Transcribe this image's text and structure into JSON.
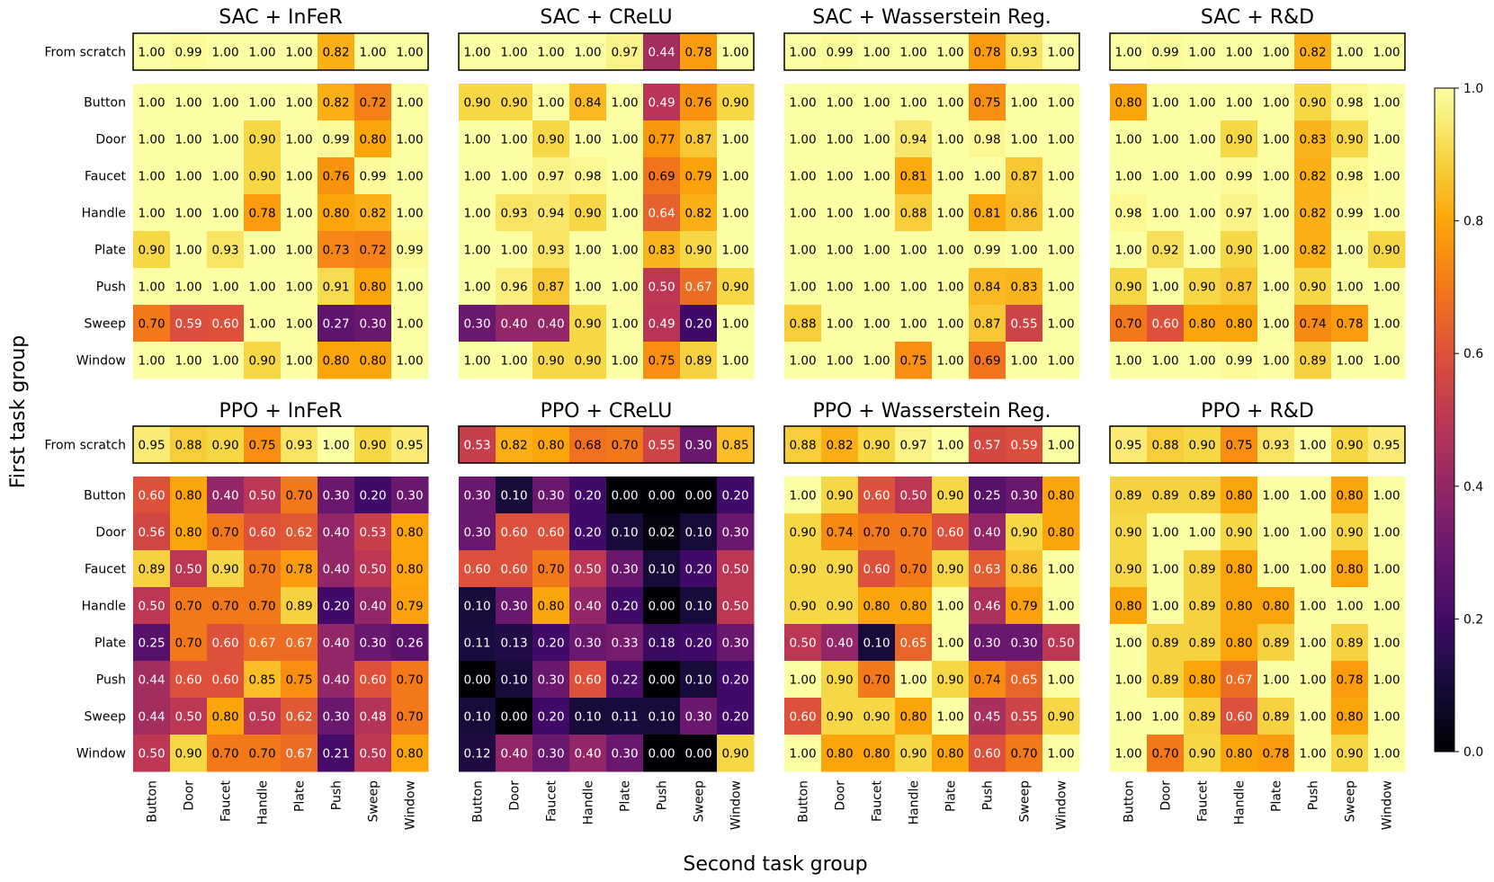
{
  "chart_data": {
    "type": "heatmap",
    "rows": [
      "Button",
      "Door",
      "Faucet",
      "Handle",
      "Plate",
      "Push",
      "Sweep",
      "Window"
    ],
    "columns": [
      "Button",
      "Door",
      "Faucet",
      "Handle",
      "Plate",
      "Push",
      "Sweep",
      "Window"
    ],
    "scratch_label": "From scratch",
    "ylabel": "First task group",
    "xlabel": "Second task group",
    "colorbar": {
      "min": 0.0,
      "max": 1.0,
      "ticks": [
        "0.0",
        "0.2",
        "0.4",
        "0.6",
        "0.8",
        "1.0"
      ]
    },
    "panels": [
      {
        "title": "SAC + InFeR",
        "scratch": [
          1.0,
          0.99,
          1.0,
          1.0,
          1.0,
          0.82,
          1.0,
          1.0
        ],
        "values": [
          [
            1.0,
            1.0,
            1.0,
            1.0,
            1.0,
            0.82,
            0.72,
            1.0
          ],
          [
            1.0,
            1.0,
            1.0,
            0.9,
            1.0,
            0.99,
            0.8,
            1.0
          ],
          [
            1.0,
            1.0,
            1.0,
            0.9,
            1.0,
            0.76,
            0.99,
            1.0
          ],
          [
            1.0,
            1.0,
            1.0,
            0.78,
            1.0,
            0.8,
            0.82,
            1.0
          ],
          [
            0.9,
            1.0,
            0.93,
            1.0,
            1.0,
            0.73,
            0.72,
            0.99
          ],
          [
            1.0,
            1.0,
            1.0,
            1.0,
            1.0,
            0.91,
            0.8,
            1.0
          ],
          [
            0.7,
            0.59,
            0.6,
            1.0,
            1.0,
            0.27,
            0.3,
            1.0
          ],
          [
            1.0,
            1.0,
            1.0,
            0.9,
            1.0,
            0.8,
            0.8,
            1.0
          ]
        ]
      },
      {
        "title": "SAC + CReLU",
        "scratch": [
          1.0,
          1.0,
          1.0,
          1.0,
          0.97,
          0.44,
          0.78,
          1.0
        ],
        "values": [
          [
            0.9,
            0.9,
            1.0,
            0.84,
            1.0,
            0.49,
            0.76,
            0.9
          ],
          [
            1.0,
            1.0,
            0.9,
            1.0,
            1.0,
            0.77,
            0.87,
            1.0
          ],
          [
            1.0,
            1.0,
            0.97,
            0.98,
            1.0,
            0.69,
            0.79,
            1.0
          ],
          [
            1.0,
            0.93,
            0.94,
            0.9,
            1.0,
            0.64,
            0.82,
            1.0
          ],
          [
            1.0,
            1.0,
            0.93,
            1.0,
            1.0,
            0.83,
            0.9,
            1.0
          ],
          [
            1.0,
            0.96,
            0.87,
            1.0,
            1.0,
            0.5,
            0.67,
            0.9
          ],
          [
            0.3,
            0.4,
            0.4,
            0.9,
            1.0,
            0.49,
            0.2,
            1.0
          ],
          [
            1.0,
            1.0,
            0.9,
            0.9,
            1.0,
            0.75,
            0.89,
            1.0
          ]
        ]
      },
      {
        "title": "SAC + Wasserstein Reg.",
        "scratch": [
          1.0,
          0.99,
          1.0,
          1.0,
          1.0,
          0.78,
          0.93,
          1.0
        ],
        "values": [
          [
            1.0,
            1.0,
            1.0,
            1.0,
            1.0,
            0.75,
            1.0,
            1.0
          ],
          [
            1.0,
            1.0,
            1.0,
            0.94,
            1.0,
            0.98,
            1.0,
            1.0
          ],
          [
            1.0,
            1.0,
            1.0,
            0.81,
            1.0,
            1.0,
            0.87,
            1.0
          ],
          [
            1.0,
            1.0,
            1.0,
            0.88,
            1.0,
            0.81,
            0.86,
            1.0
          ],
          [
            1.0,
            1.0,
            1.0,
            1.0,
            1.0,
            0.99,
            1.0,
            1.0
          ],
          [
            1.0,
            1.0,
            1.0,
            1.0,
            1.0,
            0.84,
            0.83,
            1.0
          ],
          [
            0.88,
            1.0,
            1.0,
            1.0,
            1.0,
            0.87,
            0.55,
            1.0
          ],
          [
            1.0,
            1.0,
            1.0,
            0.75,
            1.0,
            0.69,
            1.0,
            1.0
          ]
        ]
      },
      {
        "title": "SAC + R&D",
        "scratch": [
          1.0,
          0.99,
          1.0,
          1.0,
          1.0,
          0.82,
          1.0,
          1.0
        ],
        "values": [
          [
            0.8,
            1.0,
            1.0,
            1.0,
            1.0,
            0.9,
            0.98,
            1.0
          ],
          [
            1.0,
            1.0,
            1.0,
            0.9,
            1.0,
            0.83,
            0.9,
            1.0
          ],
          [
            1.0,
            1.0,
            1.0,
            0.99,
            1.0,
            0.82,
            0.98,
            1.0
          ],
          [
            0.98,
            1.0,
            1.0,
            0.97,
            1.0,
            0.82,
            0.99,
            1.0
          ],
          [
            1.0,
            0.92,
            1.0,
            0.9,
            1.0,
            0.82,
            1.0,
            0.9
          ],
          [
            0.9,
            1.0,
            0.9,
            0.87,
            1.0,
            0.9,
            1.0,
            1.0
          ],
          [
            0.7,
            0.6,
            0.8,
            0.8,
            1.0,
            0.74,
            0.78,
            1.0
          ],
          [
            1.0,
            1.0,
            1.0,
            0.99,
            1.0,
            0.89,
            1.0,
            1.0
          ]
        ]
      },
      {
        "title": "PPO + InFeR",
        "scratch": [
          0.95,
          0.88,
          0.9,
          0.75,
          0.93,
          1.0,
          0.9,
          0.95
        ],
        "values": [
          [
            0.6,
            0.8,
            0.4,
            0.5,
            0.7,
            0.3,
            0.2,
            0.3
          ],
          [
            0.56,
            0.8,
            0.7,
            0.6,
            0.62,
            0.4,
            0.53,
            0.8
          ],
          [
            0.89,
            0.5,
            0.9,
            0.7,
            0.78,
            0.4,
            0.5,
            0.8
          ],
          [
            0.5,
            0.7,
            0.7,
            0.7,
            0.89,
            0.2,
            0.4,
            0.79
          ],
          [
            0.25,
            0.7,
            0.6,
            0.67,
            0.67,
            0.4,
            0.3,
            0.26
          ],
          [
            0.44,
            0.6,
            0.6,
            0.85,
            0.75,
            0.4,
            0.6,
            0.7
          ],
          [
            0.44,
            0.5,
            0.8,
            0.5,
            0.62,
            0.3,
            0.48,
            0.7
          ],
          [
            0.5,
            0.9,
            0.7,
            0.7,
            0.67,
            0.21,
            0.5,
            0.8
          ]
        ]
      },
      {
        "title": "PPO + CReLU",
        "scratch": [
          0.53,
          0.82,
          0.8,
          0.68,
          0.7,
          0.55,
          0.3,
          0.85
        ],
        "values": [
          [
            0.3,
            0.1,
            0.3,
            0.2,
            0.0,
            0.0,
            0.0,
            0.2
          ],
          [
            0.3,
            0.6,
            0.6,
            0.2,
            0.1,
            0.02,
            0.1,
            0.3
          ],
          [
            0.6,
            0.6,
            0.7,
            0.5,
            0.3,
            0.1,
            0.2,
            0.5
          ],
          [
            0.1,
            0.3,
            0.8,
            0.4,
            0.2,
            0.0,
            0.1,
            0.5
          ],
          [
            0.11,
            0.13,
            0.2,
            0.3,
            0.33,
            0.18,
            0.2,
            0.3
          ],
          [
            0.0,
            0.1,
            0.3,
            0.6,
            0.22,
            0.0,
            0.1,
            0.2
          ],
          [
            0.1,
            0.0,
            0.2,
            0.1,
            0.11,
            0.1,
            0.3,
            0.2
          ],
          [
            0.12,
            0.4,
            0.3,
            0.4,
            0.3,
            0.0,
            0.0,
            0.9
          ]
        ]
      },
      {
        "title": "PPO + Wasserstein Reg.",
        "scratch": [
          0.88,
          0.82,
          0.9,
          0.97,
          1.0,
          0.57,
          0.59,
          1.0
        ],
        "values": [
          [
            1.0,
            0.9,
            0.6,
            0.5,
            0.9,
            0.25,
            0.3,
            0.8
          ],
          [
            0.9,
            0.74,
            0.7,
            0.7,
            0.6,
            0.4,
            0.9,
            0.8
          ],
          [
            0.9,
            0.9,
            0.6,
            0.7,
            0.9,
            0.63,
            0.86,
            1.0
          ],
          [
            0.9,
            0.9,
            0.8,
            0.8,
            1.0,
            0.46,
            0.79,
            1.0
          ],
          [
            0.5,
            0.4,
            0.1,
            0.65,
            1.0,
            0.3,
            0.3,
            0.5
          ],
          [
            1.0,
            0.9,
            0.7,
            1.0,
            0.9,
            0.74,
            0.65,
            1.0
          ],
          [
            0.6,
            0.9,
            0.9,
            0.8,
            1.0,
            0.45,
            0.55,
            0.9
          ],
          [
            1.0,
            0.8,
            0.8,
            0.9,
            0.8,
            0.6,
            0.7,
            1.0
          ]
        ]
      },
      {
        "title": "PPO + R&D",
        "scratch": [
          0.95,
          0.88,
          0.9,
          0.75,
          0.93,
          1.0,
          0.9,
          0.95
        ],
        "values": [
          [
            0.89,
            0.89,
            0.89,
            0.8,
            1.0,
            1.0,
            0.8,
            1.0
          ],
          [
            0.9,
            1.0,
            1.0,
            0.9,
            1.0,
            1.0,
            0.9,
            1.0
          ],
          [
            0.9,
            1.0,
            0.89,
            0.8,
            1.0,
            1.0,
            0.8,
            1.0
          ],
          [
            0.8,
            1.0,
            0.89,
            0.8,
            0.8,
            1.0,
            1.0,
            1.0
          ],
          [
            1.0,
            0.89,
            0.89,
            0.8,
            0.89,
            1.0,
            0.89,
            1.0
          ],
          [
            1.0,
            0.89,
            0.8,
            0.67,
            1.0,
            1.0,
            0.78,
            1.0
          ],
          [
            1.0,
            1.0,
            0.89,
            0.6,
            0.89,
            1.0,
            0.8,
            1.0
          ],
          [
            1.0,
            0.7,
            0.9,
            0.8,
            0.78,
            1.0,
            0.9,
            1.0
          ]
        ]
      }
    ]
  }
}
